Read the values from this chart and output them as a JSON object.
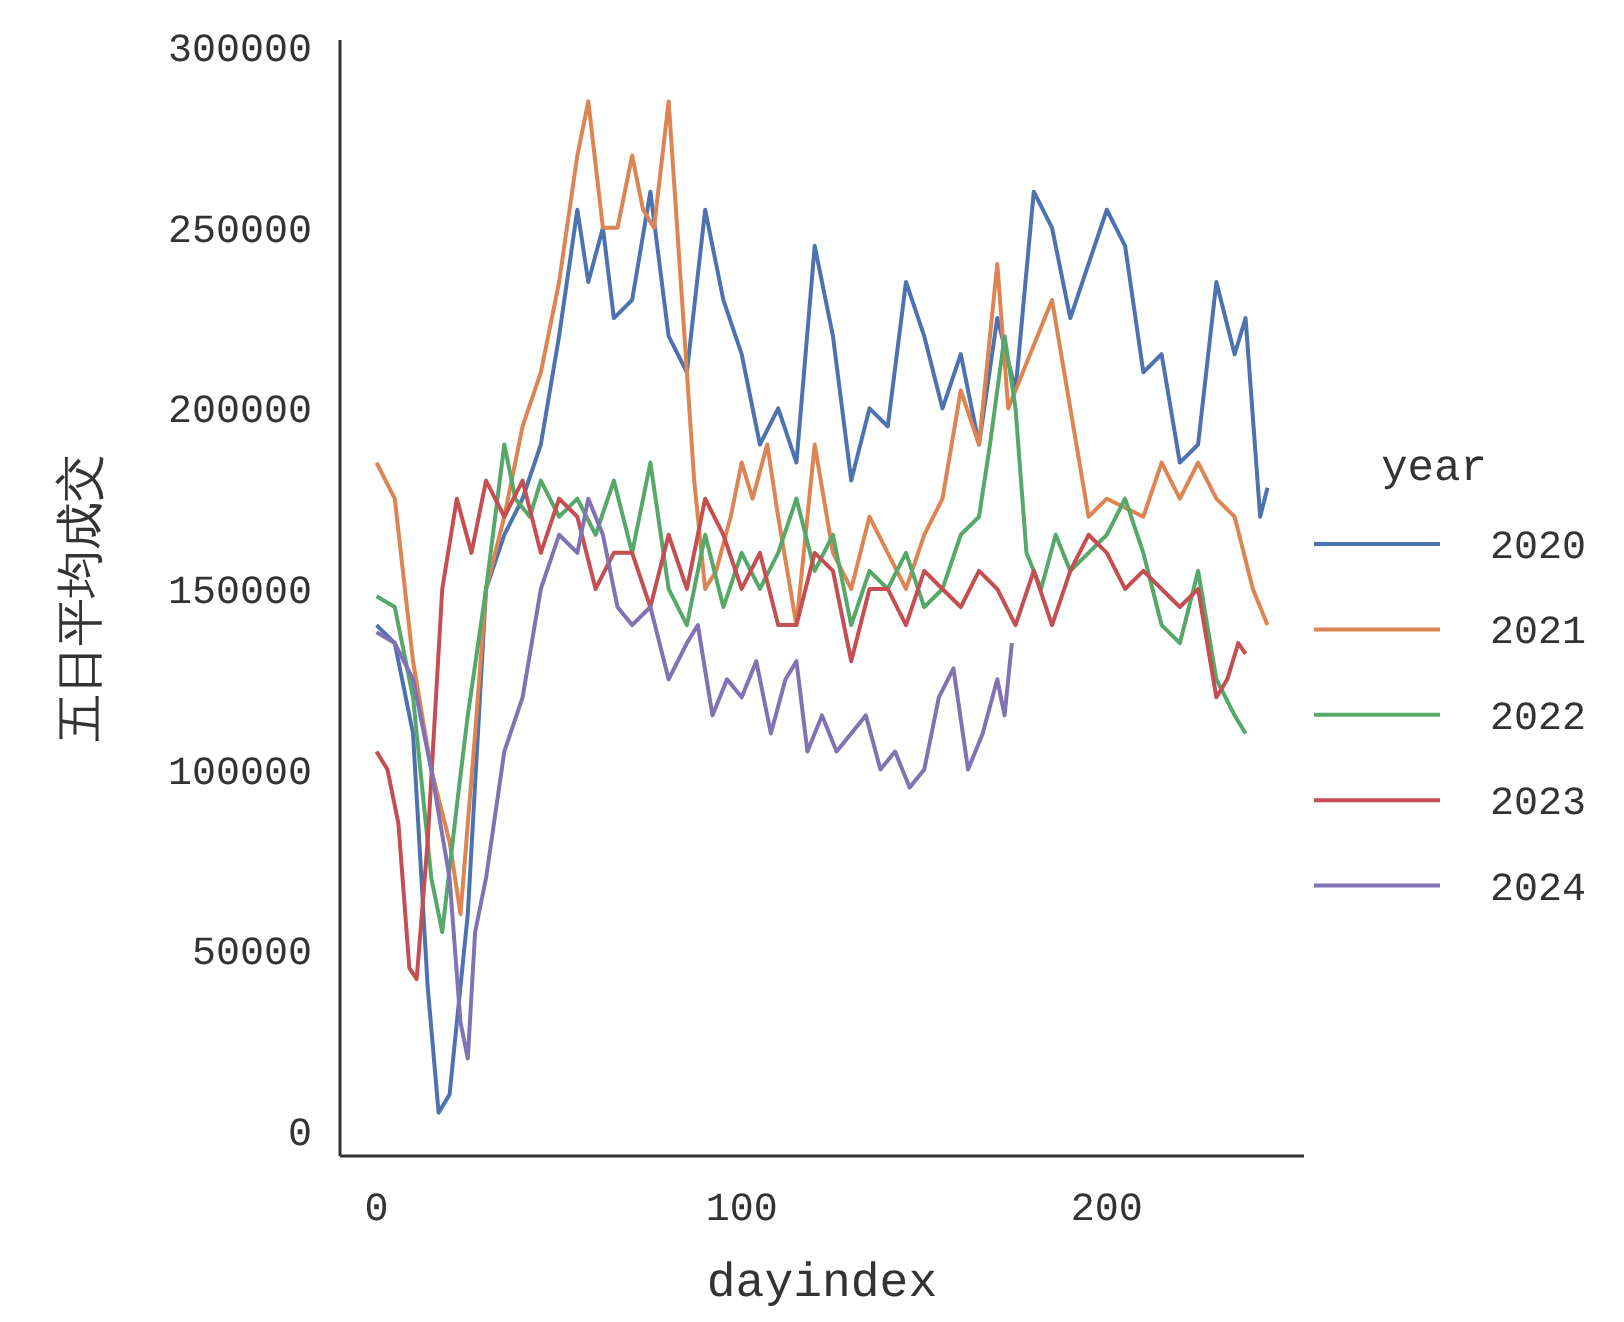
{
  "chart_data": {
    "type": "line",
    "xlabel": "dayindex",
    "ylabel": "五日平均成交",
    "legend_title": "year",
    "legend": "right",
    "xlim": [
      -10,
      254
    ],
    "ylim": [
      -7000,
      302000
    ],
    "xticks": [
      0,
      100,
      200
    ],
    "yticks": [
      0,
      50000,
      100000,
      150000,
      200000,
      250000,
      300000
    ],
    "series": [
      {
        "name": "2020",
        "color": "#4c72b0",
        "x": [
          0,
          5,
          10,
          14,
          17,
          20,
          25,
          30,
          35,
          40,
          45,
          50,
          55,
          58,
          62,
          65,
          70,
          75,
          80,
          85,
          90,
          95,
          100,
          105,
          110,
          115,
          120,
          125,
          130,
          135,
          140,
          145,
          150,
          155,
          160,
          165,
          170,
          175,
          180,
          185,
          190,
          195,
          200,
          205,
          210,
          215,
          220,
          225,
          230,
          235,
          238,
          242,
          244
        ],
        "values": [
          140000,
          135000,
          110000,
          40000,
          5000,
          10000,
          60000,
          150000,
          165000,
          175000,
          190000,
          220000,
          255000,
          235000,
          250000,
          225000,
          230000,
          260000,
          220000,
          210000,
          255000,
          230000,
          215000,
          190000,
          200000,
          185000,
          245000,
          220000,
          180000,
          200000,
          195000,
          235000,
          220000,
          200000,
          215000,
          190000,
          225000,
          205000,
          260000,
          250000,
          225000,
          240000,
          255000,
          245000,
          210000,
          215000,
          185000,
          190000,
          235000,
          215000,
          225000,
          170000,
          178000
        ]
      },
      {
        "name": "2021",
        "color": "#dd8452",
        "x": [
          0,
          5,
          10,
          15,
          20,
          23,
          27,
          30,
          35,
          40,
          45,
          50,
          55,
          58,
          62,
          66,
          70,
          73,
          76,
          80,
          83,
          87,
          90,
          93,
          97,
          100,
          103,
          107,
          110,
          115,
          120,
          125,
          130,
          135,
          140,
          145,
          150,
          155,
          160,
          165,
          170,
          173,
          177,
          185,
          190,
          195,
          200,
          210,
          215,
          220,
          225,
          230,
          235,
          240,
          244
        ],
        "values": [
          185000,
          175000,
          130000,
          100000,
          80000,
          60000,
          110000,
          150000,
          170000,
          195000,
          210000,
          235000,
          270000,
          285000,
          250000,
          250000,
          270000,
          255000,
          250000,
          285000,
          240000,
          180000,
          150000,
          155000,
          170000,
          185000,
          175000,
          190000,
          170000,
          140000,
          190000,
          160000,
          150000,
          170000,
          160000,
          150000,
          165000,
          175000,
          205000,
          190000,
          240000,
          200000,
          210000,
          230000,
          200000,
          170000,
          175000,
          170000,
          185000,
          175000,
          185000,
          175000,
          170000,
          150000,
          140000
        ]
      },
      {
        "name": "2022",
        "color": "#55a868",
        "x": [
          0,
          5,
          10,
          15,
          18,
          22,
          25,
          30,
          35,
          38,
          42,
          45,
          50,
          55,
          60,
          65,
          70,
          75,
          80,
          85,
          90,
          95,
          100,
          105,
          110,
          115,
          120,
          125,
          130,
          135,
          140,
          145,
          150,
          155,
          160,
          165,
          168,
          172,
          175,
          178,
          182,
          186,
          190,
          195,
          200,
          205,
          210,
          215,
          220,
          225,
          230,
          235,
          238
        ],
        "values": [
          148000,
          145000,
          120000,
          70000,
          55000,
          90000,
          115000,
          150000,
          190000,
          175000,
          170000,
          180000,
          170000,
          175000,
          165000,
          180000,
          160000,
          185000,
          150000,
          140000,
          165000,
          145000,
          160000,
          150000,
          160000,
          175000,
          155000,
          165000,
          140000,
          155000,
          150000,
          160000,
          145000,
          150000,
          165000,
          170000,
          190000,
          220000,
          200000,
          160000,
          150000,
          165000,
          155000,
          160000,
          165000,
          175000,
          160000,
          140000,
          135000,
          155000,
          125000,
          115000,
          110000
        ]
      },
      {
        "name": "2023",
        "color": "#c44e52",
        "x": [
          0,
          3,
          6,
          9,
          11,
          14,
          18,
          22,
          26,
          30,
          35,
          40,
          45,
          50,
          55,
          60,
          65,
          70,
          75,
          80,
          85,
          90,
          95,
          100,
          105,
          110,
          115,
          120,
          125,
          130,
          135,
          140,
          145,
          150,
          155,
          160,
          165,
          170,
          175,
          180,
          185,
          190,
          195,
          200,
          205,
          210,
          215,
          220,
          225,
          230,
          233,
          236,
          238
        ],
        "values": [
          105000,
          100000,
          85000,
          45000,
          42000,
          80000,
          150000,
          175000,
          160000,
          180000,
          170000,
          180000,
          160000,
          175000,
          170000,
          150000,
          160000,
          160000,
          145000,
          165000,
          150000,
          175000,
          165000,
          150000,
          160000,
          140000,
          140000,
          160000,
          155000,
          130000,
          150000,
          150000,
          140000,
          155000,
          150000,
          145000,
          155000,
          150000,
          140000,
          155000,
          140000,
          155000,
          165000,
          160000,
          150000,
          155000,
          150000,
          145000,
          150000,
          120000,
          125000,
          135000,
          132000
        ]
      },
      {
        "name": "2024",
        "color": "#8172b3",
        "x": [
          0,
          5,
          10,
          15,
          20,
          23,
          25,
          27,
          30,
          35,
          40,
          45,
          50,
          55,
          58,
          62,
          66,
          70,
          75,
          80,
          85,
          88,
          92,
          96,
          100,
          104,
          108,
          112,
          115,
          118,
          122,
          126,
          130,
          134,
          138,
          142,
          146,
          150,
          154,
          158,
          162,
          166,
          170,
          172,
          174
        ],
        "values": [
          138000,
          135000,
          125000,
          100000,
          70000,
          30000,
          20000,
          55000,
          70000,
          105000,
          120000,
          150000,
          165000,
          160000,
          175000,
          165000,
          145000,
          140000,
          145000,
          125000,
          135000,
          140000,
          115000,
          125000,
          120000,
          130000,
          110000,
          125000,
          130000,
          105000,
          115000,
          105000,
          110000,
          115000,
          100000,
          105000,
          95000,
          100000,
          120000,
          128000,
          100000,
          110000,
          125000,
          115000,
          135000
        ]
      }
    ]
  }
}
